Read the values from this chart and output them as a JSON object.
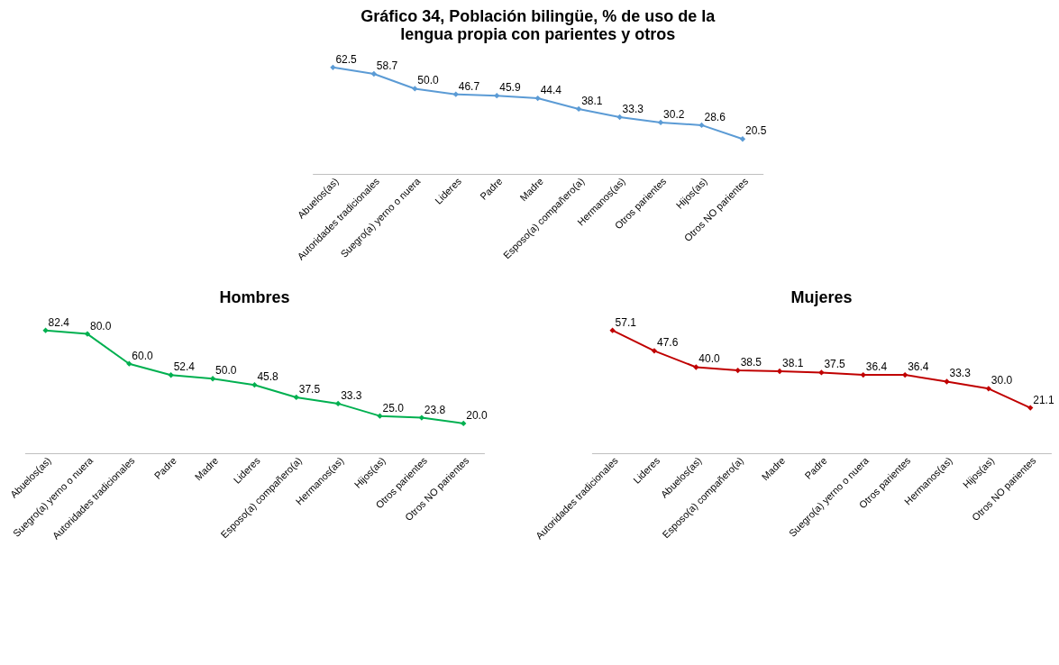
{
  "chart_data": [
    {
      "type": "line",
      "title": [
        "Gráfico 34, Población bilingüe, % de uso de la",
        "lengua propia con parientes y otros"
      ],
      "categories": [
        "Abuelos(as)",
        "Autoridades tradicionales",
        "Suegro(a) yerno o nuera",
        "Lideres",
        "Padre",
        "Madre",
        "Esposo(a) compañero(a)",
        "Hermanos(as)",
        "Otros parientes",
        "Hijos(as)",
        "Otros NO parientes"
      ],
      "series": [
        {
          "color": "#5b9bd5",
          "values": [
            62.5,
            58.7,
            50.0,
            46.7,
            45.9,
            44.4,
            38.1,
            33.3,
            30.2,
            28.6,
            20.5
          ],
          "value_labels": [
            "62.5",
            "58.7",
            "50.0",
            "46.7",
            "45.9",
            "44.4",
            "38.1",
            "33.3",
            "30.2",
            "28.6",
            "20.5"
          ]
        }
      ],
      "marker": "diamond"
    },
    {
      "type": "line",
      "title": "Hombres",
      "categories": [
        "Abuelos(as)",
        "Suegro(a) yerno o nuera",
        "Autoridades tradicionales",
        "Padre",
        "Madre",
        "Lideres",
        "Esposo(a) compañero(a)",
        "Hermanos(as)",
        "Hijos(as)",
        "Otros parientes",
        "Otros NO parientes"
      ],
      "series": [
        {
          "color": "#00b050",
          "values": [
            82.4,
            80.0,
            60.0,
            52.4,
            50.0,
            45.8,
            37.5,
            33.3,
            25.0,
            23.8,
            20.0
          ],
          "value_labels": [
            "82.4",
            "80.0",
            "60.0",
            "52.4",
            "50.0",
            "45.8",
            "37.5",
            "33.3",
            "25.0",
            "23.8",
            "20.0"
          ]
        }
      ],
      "marker": "diamond"
    },
    {
      "type": "line",
      "title": "Mujeres",
      "categories": [
        "Autoridades tradicionales",
        "Lideres",
        "Abuelos(as)",
        "Esposo(a) compañero(a)",
        "Madre",
        "Padre",
        "Suegro(a) yerno o nuera",
        "Otros parientes",
        "Hermanos(as)",
        "Hijos(as)",
        "Otros NO parientes"
      ],
      "series": [
        {
          "color": "#c00000",
          "values": [
            57.1,
            47.6,
            40.0,
            38.5,
            38.1,
            37.5,
            36.4,
            36.4,
            33.3,
            30.0,
            21.1
          ],
          "value_labels": [
            "57.1",
            "47.6",
            "40.0",
            "38.5",
            "38.1",
            "37.5",
            "36.4",
            "36.4",
            "33.3",
            "30.0",
            "21.1"
          ]
        }
      ],
      "marker": "diamond"
    }
  ]
}
